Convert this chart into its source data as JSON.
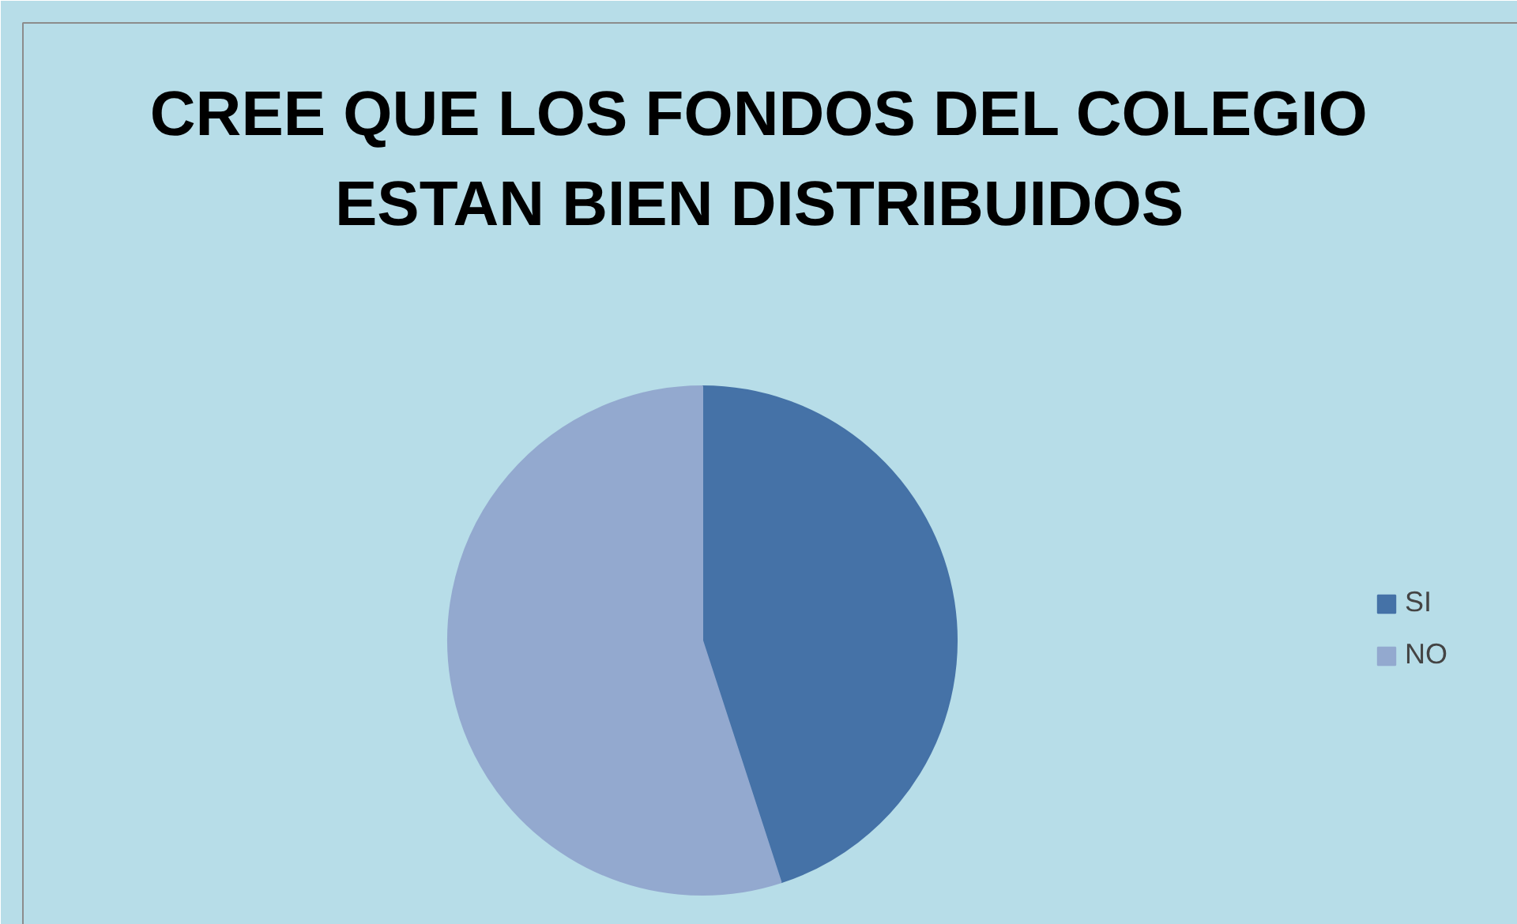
{
  "chart_data": {
    "type": "pie",
    "title": "CREE QUE LOS FONDOS DEL COLEGIO\nESTAN BIEN DISTRIBUIDOS",
    "categories": [
      "SI",
      "NO"
    ],
    "values": [
      45,
      55
    ],
    "colors": [
      "#4572a7",
      "#93a9cf"
    ],
    "legend": "right"
  }
}
